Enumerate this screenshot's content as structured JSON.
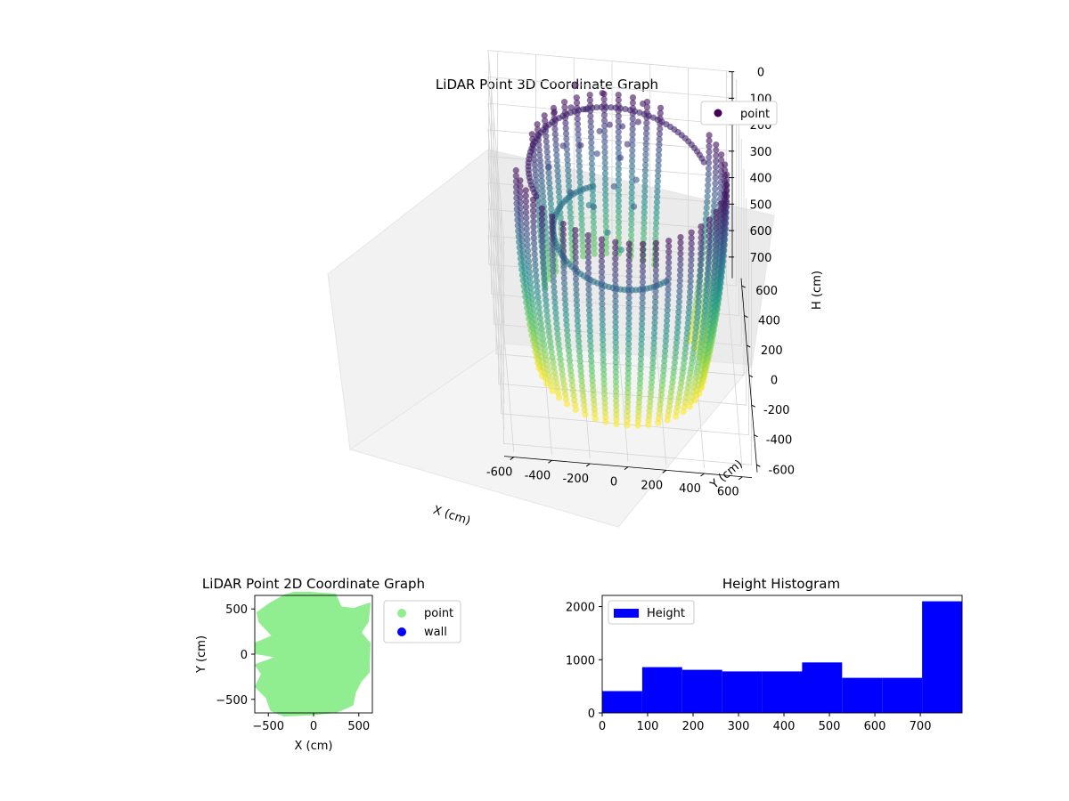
{
  "chart_data": [
    {
      "type": "scatter",
      "projection": "3d",
      "title": "LiDAR Point 3D Coordinate Graph",
      "xlabel": "X (cm)",
      "ylabel": "Y (cm)",
      "zlabel": "H (cm)",
      "xlim": [
        -650,
        650
      ],
      "ylim": [
        -650,
        650
      ],
      "zlim": [
        780,
        0
      ],
      "xticks": [
        -600,
        -400,
        -200,
        0,
        200,
        400,
        600
      ],
      "yticks": [
        -600,
        -400,
        -200,
        0,
        200,
        400,
        600
      ],
      "zticks": [
        0,
        100,
        200,
        300,
        400,
        500,
        600,
        700
      ],
      "z_inverted": true,
      "colormap": "viridis",
      "grid": true,
      "legend": {
        "position": "top-right",
        "entries": [
          {
            "label": "point",
            "color": "#440154"
          }
        ]
      },
      "wall_ring": {
        "radius_x": 560,
        "radius_y": 520,
        "h_top": 30,
        "h_bottom": 780,
        "angle_from_deg": -170,
        "angle_to_deg": 30,
        "strands": 28
      },
      "back_arc": {
        "radius": 480,
        "h": 80
      },
      "mid_arc": {
        "radius": 350,
        "h": 300
      },
      "ceiling_scatter_points": [
        [
          -230,
          420,
          60
        ],
        [
          -150,
          470,
          90
        ],
        [
          -60,
          500,
          40
        ],
        [
          40,
          430,
          120
        ],
        [
          120,
          380,
          70
        ],
        [
          -280,
          300,
          140
        ],
        [
          -190,
          260,
          110
        ],
        [
          -100,
          320,
          170
        ],
        [
          20,
          270,
          150
        ],
        [
          100,
          220,
          200
        ],
        [
          -250,
          150,
          230
        ],
        [
          -130,
          120,
          260
        ],
        [
          -20,
          180,
          210
        ],
        [
          80,
          110,
          240
        ],
        [
          -320,
          380,
          60
        ],
        [
          -200,
          520,
          30
        ],
        [
          -30,
          380,
          90
        ],
        [
          60,
          330,
          130
        ],
        [
          -150,
          200,
          300
        ],
        [
          -60,
          80,
          330
        ],
        [
          150,
          470,
          50
        ],
        [
          -360,
          220,
          180
        ],
        [
          -80,
          420,
          140
        ],
        [
          10,
          60,
          380
        ]
      ]
    },
    {
      "type": "scatter",
      "title": "LiDAR Point 2D Coordinate Graph",
      "xlabel": "X (cm)",
      "ylabel": "Y (cm)",
      "xlim": [
        -650,
        650
      ],
      "ylim": [
        -650,
        650
      ],
      "xticks": [
        -500,
        0,
        500
      ],
      "yticks": [
        -500,
        0,
        500
      ],
      "series": [
        {
          "name": "point",
          "color": "#90ee90"
        },
        {
          "name": "wall",
          "color": "#0000ff"
        }
      ],
      "legend": "outside-right",
      "footprint_outline": [
        [
          -320,
          650
        ],
        [
          -220,
          680
        ],
        [
          -40,
          680
        ],
        [
          240,
          660
        ],
        [
          300,
          520
        ],
        [
          440,
          500
        ],
        [
          620,
          560
        ],
        [
          600,
          360
        ],
        [
          520,
          240
        ],
        [
          620,
          120
        ],
        [
          610,
          -200
        ],
        [
          520,
          -300
        ],
        [
          460,
          -420
        ],
        [
          430,
          -560
        ],
        [
          250,
          -640
        ],
        [
          -50,
          -670
        ],
        [
          -330,
          -680
        ],
        [
          -470,
          -620
        ],
        [
          -520,
          -480
        ],
        [
          -640,
          -360
        ],
        [
          -570,
          -220
        ],
        [
          -640,
          -120
        ],
        [
          -400,
          -30
        ],
        [
          -640,
          10
        ],
        [
          -640,
          120
        ],
        [
          -450,
          200
        ],
        [
          -600,
          360
        ],
        [
          -620,
          460
        ],
        [
          -480,
          560
        ]
      ]
    },
    {
      "type": "bar",
      "title": "Height Histogram",
      "bin_edges": [
        0,
        88,
        176,
        264,
        352,
        440,
        528,
        616,
        704,
        792
      ],
      "values": [
        410,
        860,
        810,
        780,
        780,
        950,
        660,
        660,
        2100
      ],
      "xlim": [
        0,
        792
      ],
      "ylim": [
        0,
        2210
      ],
      "xticks": [
        0,
        100,
        200,
        300,
        400,
        500,
        600,
        700
      ],
      "yticks": [
        0,
        1000,
        2000
      ],
      "series": [
        {
          "name": "Height",
          "color": "#0000ff"
        }
      ],
      "legend": "top-left"
    }
  ]
}
